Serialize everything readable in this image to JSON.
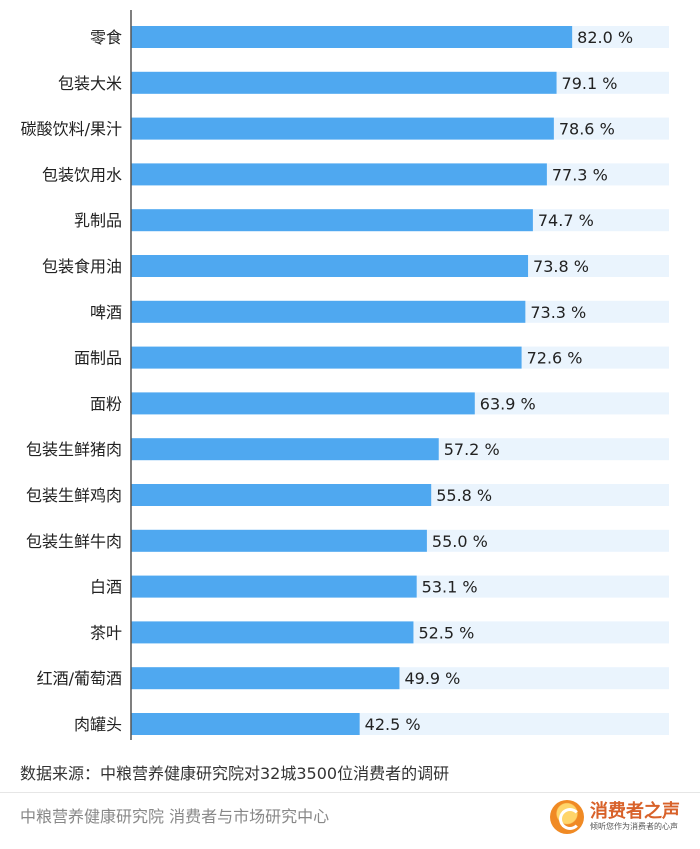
{
  "chart_data": {
    "type": "bar",
    "orientation": "horizontal",
    "categories": [
      "零食",
      "包装大米",
      "碳酸饮料/果汁",
      "包装饮用水",
      "乳制品",
      "包装食用油",
      "啤酒",
      "面制品",
      "面粉",
      "包装生鲜猪肉",
      "包装生鲜鸡肉",
      "包装生鲜牛肉",
      "白酒",
      "茶叶",
      "红酒/葡萄酒",
      "肉罐头"
    ],
    "values": [
      82.0,
      79.1,
      78.6,
      77.3,
      74.7,
      73.8,
      73.3,
      72.6,
      63.9,
      57.2,
      55.8,
      55.0,
      53.1,
      52.5,
      49.9,
      42.5
    ],
    "value_labels": [
      "82.0 %",
      "79.1 %",
      "78.6 %",
      "77.3 %",
      "74.7 %",
      "73.8 %",
      "73.3 %",
      "72.6 %",
      "63.9 %",
      "57.2 %",
      "55.8 %",
      "55.0 %",
      "53.1 %",
      "52.5 %",
      "49.9 %",
      "42.5 %"
    ],
    "xlim": [
      0,
      100
    ],
    "grid": false,
    "legend": "none",
    "colors": {
      "bar": "#4fa8f0",
      "track": "#eaf4fd",
      "axis": "#555555",
      "text": "#222222"
    }
  },
  "source_note": "数据来源：中粮营养健康研究院对32城3500位消费者的调研",
  "footer": {
    "institutions": "中粮营养健康研究院 消费者与市场研究中心",
    "brand_name": "消费者之声",
    "brand_tagline": "倾听您作为消费者的心声"
  }
}
